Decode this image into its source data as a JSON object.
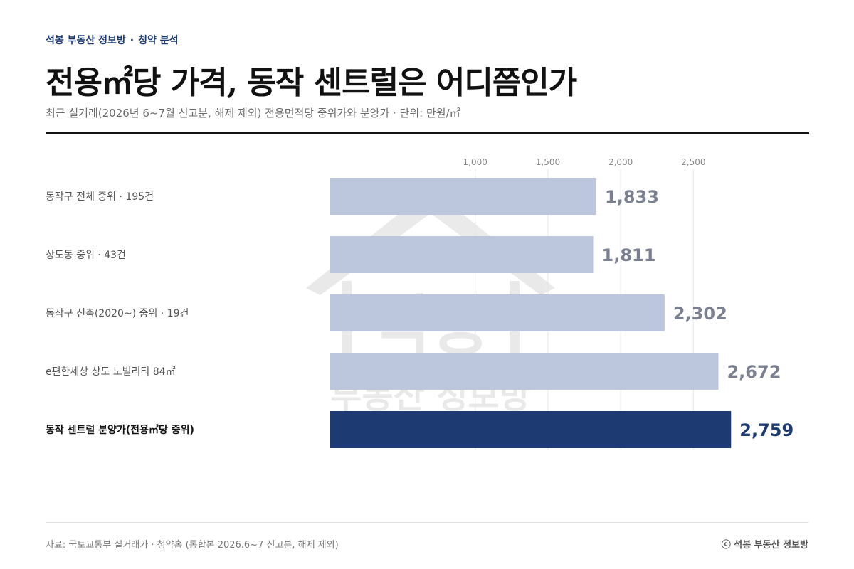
{
  "header": {
    "publisher": "석봉 부동산 정보방",
    "separator": "·",
    "section": "청약 분석",
    "title": "전용㎡당 가격, 동작 센트럴은 어디쯤인가",
    "subtitle": "최근 실거래(2026년 6~7월 신고분, 해제 제외) 전용면적당 중위가와 분양가 · 단위: 만원/㎡"
  },
  "watermark": {
    "text_top": "석봉",
    "text_bottom": "부동산 정보방"
  },
  "chart_data": {
    "type": "bar",
    "orientation": "horizontal",
    "categories": [
      "동작구 전체 중위 · 195건",
      "상도동 중위 · 43건",
      "동작구 신축(2020~) 중위 · 19건",
      "e편한세상 상도 노빌리티 84㎡",
      "동작 센트럴 분양가(전용㎡당 중위)"
    ],
    "values": [
      1833,
      1811,
      2302,
      2672,
      2759
    ],
    "value_labels": [
      "1,833",
      "1,811",
      "2,302",
      "2,672",
      "2,759"
    ],
    "highlight_index": 4,
    "xlim": [
      0,
      2800
    ],
    "ticks": [
      1000,
      1500,
      2000,
      2500
    ],
    "tick_labels": [
      "1,000",
      "1,500",
      "2,000",
      "2,500"
    ],
    "grid": true,
    "colors": {
      "bar": "#bcc6dc",
      "highlight": "#1d3b72",
      "value_label": "#7a8090",
      "highlight_label": "#1d3b72"
    }
  },
  "footer": {
    "source": "자료: 국토교통부 실거래가 · 청약홈 (통합본 2026.6~7 신고분, 해제 제외)",
    "brand": "ⓒ 석봉 부동산 정보방"
  }
}
